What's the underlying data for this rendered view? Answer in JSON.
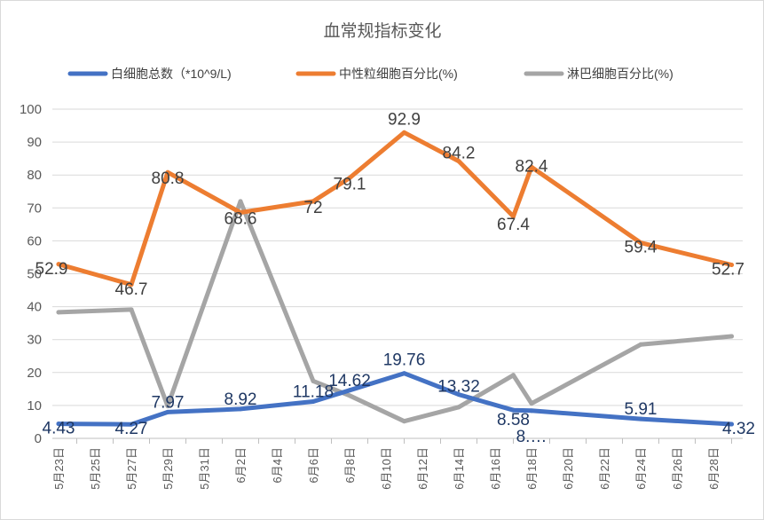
{
  "chart_data": {
    "type": "line",
    "title": "血常规指标变化",
    "x": [
      "5月23日",
      "5月25日",
      "5月27日",
      "5月29日",
      "5月31日",
      "6月2日",
      "6月4日",
      "6月6日",
      "6月8日",
      "6月10日",
      "6月12日",
      "6月14日",
      "6月16日",
      "6月18日",
      "6月20日",
      "6月22日",
      "6月24日",
      "6月26日",
      "6月28日"
    ],
    "ylim": [
      0,
      100
    ],
    "yticks": [
      0,
      10,
      20,
      30,
      40,
      50,
      60,
      70,
      80,
      90,
      100
    ],
    "grid": true,
    "legend_position": "top",
    "series": [
      {
        "name": "白细胞总数（*10^9/L)",
        "color": "#4472C4",
        "label_color": "#1F3864",
        "points": [
          {
            "x": "5月23日",
            "y": 4.43,
            "label": "4.43"
          },
          {
            "x": "5月27日",
            "y": 4.27,
            "label": "4.27"
          },
          {
            "x": "5月29日",
            "y": 7.97,
            "label": "7.97"
          },
          {
            "x": "6月2日",
            "y": 8.92,
            "label": "8.92"
          },
          {
            "x": "6月6日",
            "y": 11.18,
            "label": "11.18"
          },
          {
            "x": "6月8日",
            "y": 14.62,
            "label": "14.62"
          },
          {
            "x": "6月11日",
            "y": 19.76,
            "label": "19.76"
          },
          {
            "x": "6月14日",
            "y": 13.32,
            "label": "13.32"
          },
          {
            "x": "6月17日",
            "y": 8.58,
            "label": "8.58"
          },
          {
            "x": "6月18日",
            "y": 8.4,
            "label": "8.…"
          },
          {
            "x": "6月24日",
            "y": 5.91,
            "label": "5.91"
          },
          {
            "x": "6月29日",
            "y": 4.32,
            "label": "4.32"
          }
        ]
      },
      {
        "name": "中性粒细胞百分比(%)",
        "color": "#ED7D31",
        "label_color": "#404040",
        "points": [
          {
            "x": "5月23日",
            "y": 52.9,
            "label": "52.9"
          },
          {
            "x": "5月27日",
            "y": 46.7,
            "label": "46.7"
          },
          {
            "x": "5月29日",
            "y": 80.8,
            "label": "80.8"
          },
          {
            "x": "6月2日",
            "y": 68.6,
            "label": "68.6"
          },
          {
            "x": "6月6日",
            "y": 72,
            "label": "72"
          },
          {
            "x": "6月8日",
            "y": 79.1,
            "label": "79.1"
          },
          {
            "x": "6月11日",
            "y": 92.9,
            "label": "92.9"
          },
          {
            "x": "6月14日",
            "y": 84.2,
            "label": "84.2"
          },
          {
            "x": "6月17日",
            "y": 67.4,
            "label": "67.4"
          },
          {
            "x": "6月18日",
            "y": 82.4,
            "label": "82.4"
          },
          {
            "x": "6月24日",
            "y": 59.4,
            "label": "59.4"
          },
          {
            "x": "6月29日",
            "y": 52.7,
            "label": "52.7"
          }
        ]
      },
      {
        "name": "淋巴细胞百分比(%)",
        "color": "#A5A5A5",
        "points": [
          {
            "x": "5月23日",
            "y": 38.3
          },
          {
            "x": "5月27日",
            "y": 39.1
          },
          {
            "x": "5月29日",
            "y": 9.8
          },
          {
            "x": "6月2日",
            "y": 72.0
          },
          {
            "x": "6月6日",
            "y": 17.4
          },
          {
            "x": "6月8日",
            "y": 13.0
          },
          {
            "x": "6月11日",
            "y": 5.2
          },
          {
            "x": "6月14日",
            "y": 9.5
          },
          {
            "x": "6月17日",
            "y": 19.2
          },
          {
            "x": "6月18日",
            "y": 10.6
          },
          {
            "x": "6月24日",
            "y": 28.5
          },
          {
            "x": "6月29日",
            "y": 31.0
          }
        ]
      }
    ]
  }
}
